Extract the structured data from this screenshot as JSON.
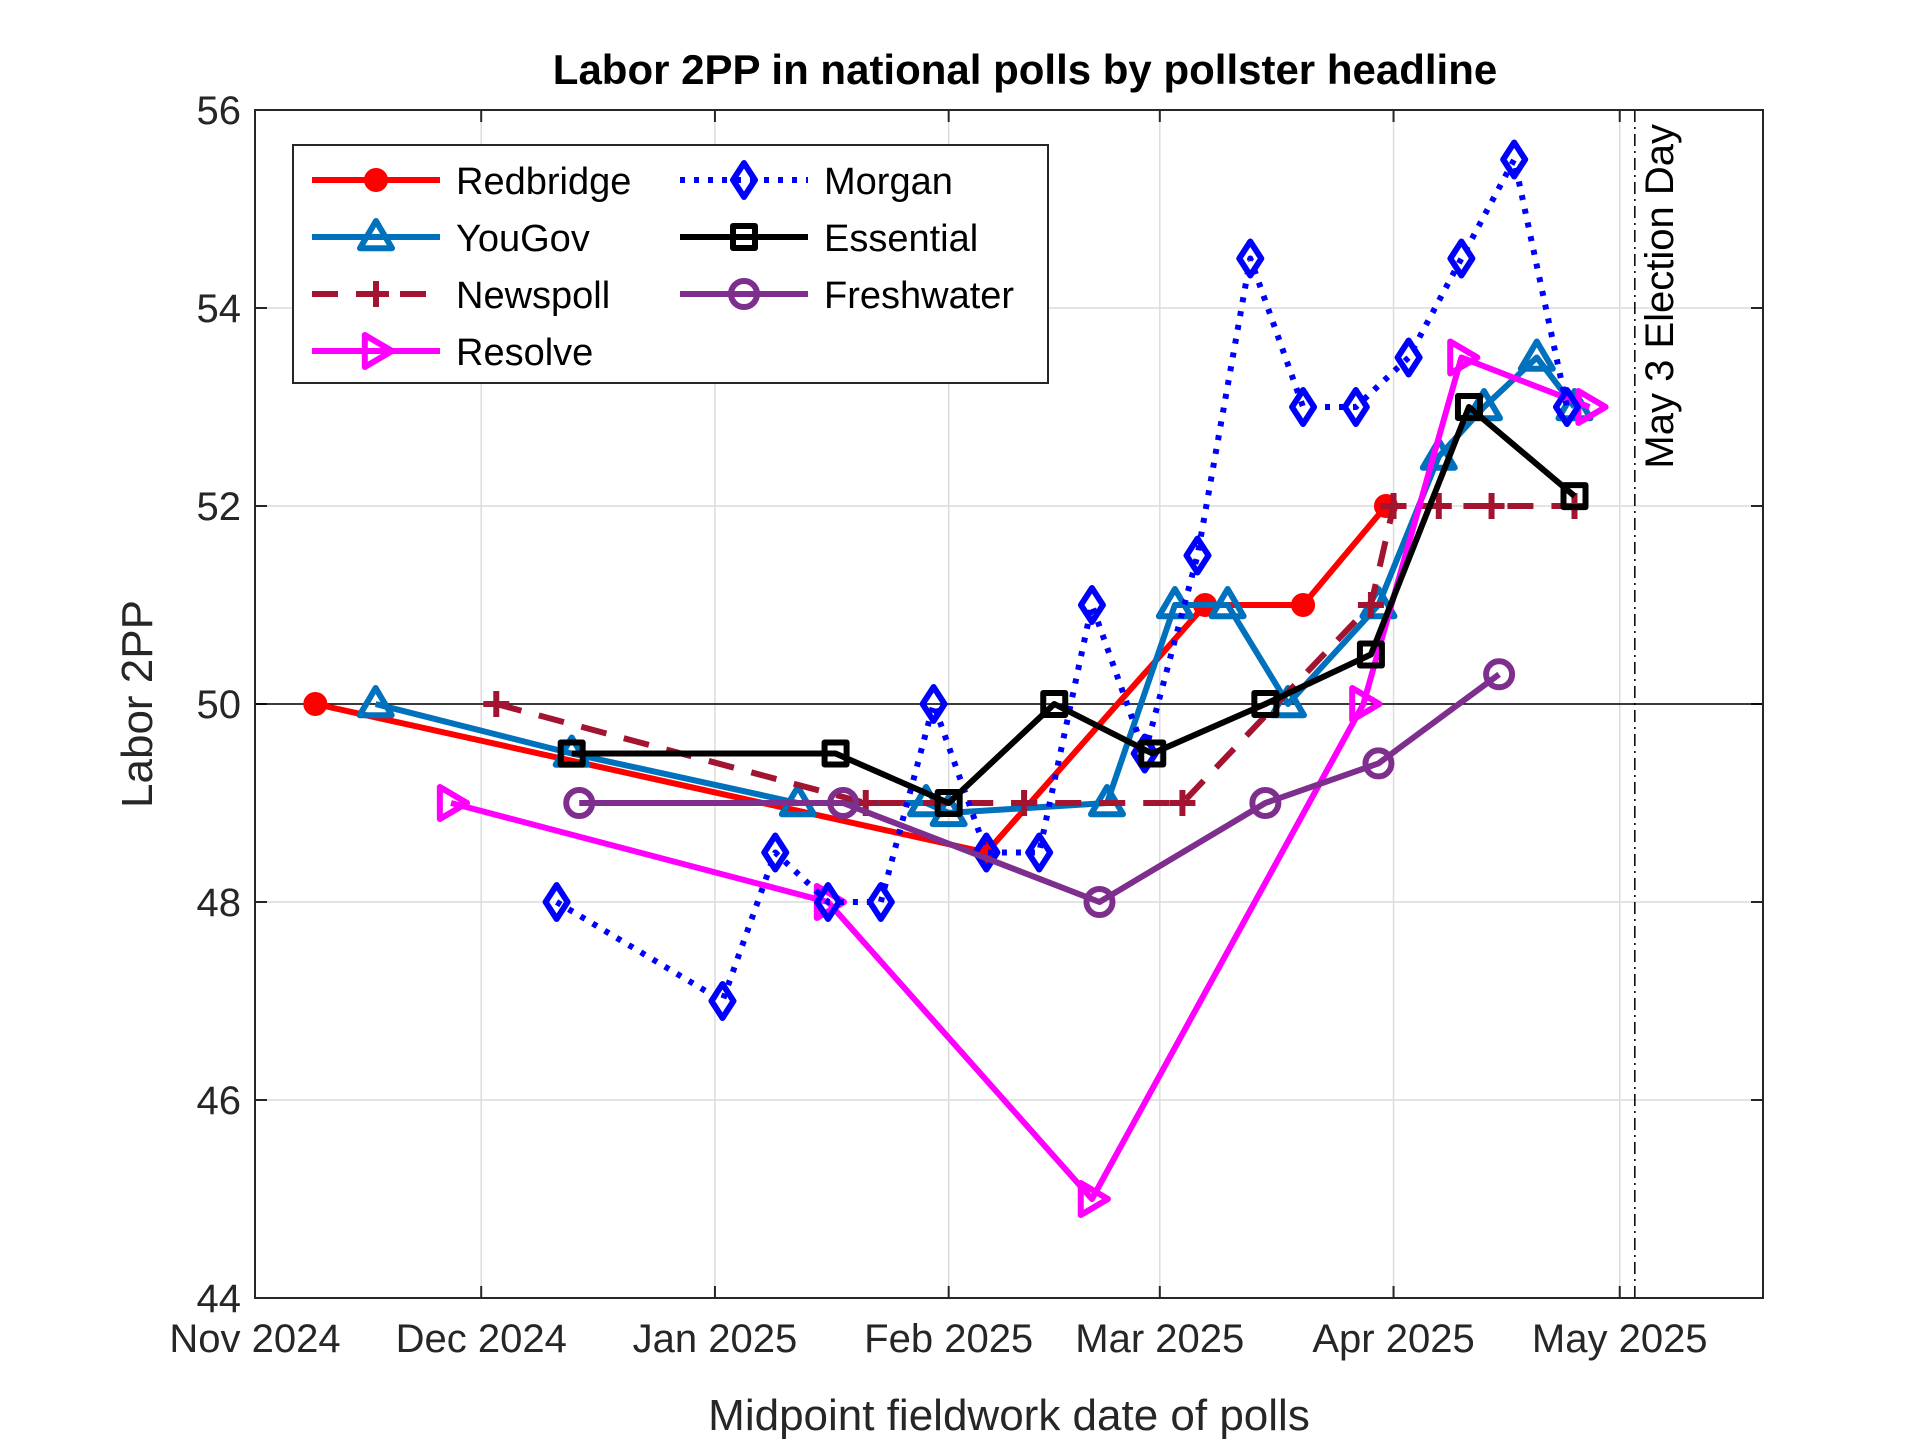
{
  "chart_data": {
    "type": "line",
    "title": "Labor 2PP in national polls by pollster headline",
    "xlabel": "Midpoint fieldwork date of polls",
    "ylabel": "Labor 2PP",
    "ylim": [
      44,
      56
    ],
    "yticks": [
      "44",
      "46",
      "48",
      "50",
      "52",
      "54",
      "56"
    ],
    "xlim": [
      "2024-11-01",
      "2025-05-20"
    ],
    "xticks": [
      {
        "date": "2024-11-01",
        "label": "Nov 2024"
      },
      {
        "date": "2024-12-01",
        "label": "Dec 2024"
      },
      {
        "date": "2025-01-01",
        "label": "Jan 2025"
      },
      {
        "date": "2025-02-01",
        "label": "Feb 2025"
      },
      {
        "date": "2025-03-01",
        "label": "Mar 2025"
      },
      {
        "date": "2025-04-01",
        "label": "Apr 2025"
      },
      {
        "date": "2025-05-01",
        "label": "May 2025"
      }
    ],
    "grid": true,
    "legend_position": "top-left",
    "reference_line_y": 50,
    "election_day": {
      "date": "2025-05-03",
      "label": "May 3 Election Day"
    },
    "series": [
      {
        "name": "Redbridge",
        "color": "#ff0000",
        "marker": "circle",
        "line": "solid",
        "points": [
          [
            "2024-11-09",
            50
          ],
          [
            "2025-02-06",
            48.5
          ],
          [
            "2025-03-07",
            51
          ],
          [
            "2025-03-20",
            51
          ],
          [
            "2025-03-31",
            52
          ]
        ]
      },
      {
        "name": "YouGov",
        "color": "#0072bd",
        "marker": "triangle-up",
        "line": "solid",
        "points": [
          [
            "2024-11-17",
            50
          ],
          [
            "2024-12-13",
            49.5
          ],
          [
            "2025-01-12",
            49
          ],
          [
            "2025-01-29",
            49
          ],
          [
            "2025-02-01",
            48.9
          ],
          [
            "2025-02-22",
            49
          ],
          [
            "2025-03-03",
            51
          ],
          [
            "2025-03-10",
            51
          ],
          [
            "2025-03-18",
            50
          ],
          [
            "2025-03-30",
            51
          ],
          [
            "2025-04-07",
            52.5
          ],
          [
            "2025-04-13",
            53
          ],
          [
            "2025-04-20",
            53.5
          ],
          [
            "2025-04-25",
            53
          ]
        ]
      },
      {
        "name": "Newspoll",
        "color": "#a2142f",
        "marker": "plus",
        "line": "dashed",
        "points": [
          [
            "2024-12-03",
            50
          ],
          [
            "2025-01-21",
            49
          ],
          [
            "2025-02-11",
            49
          ],
          [
            "2025-03-04",
            49
          ],
          [
            "2025-03-29",
            51
          ],
          [
            "2025-04-01",
            52
          ],
          [
            "2025-04-07",
            52
          ],
          [
            "2025-04-14",
            52
          ],
          [
            "2025-04-25",
            52
          ]
        ]
      },
      {
        "name": "Resolve",
        "color": "#ff00ff",
        "marker": "triangle-right",
        "line": "solid",
        "points": [
          [
            "2024-11-27",
            49
          ],
          [
            "2025-01-16",
            48
          ],
          [
            "2025-02-20",
            45
          ],
          [
            "2025-03-28",
            50
          ],
          [
            "2025-04-10",
            53.5
          ],
          [
            "2025-04-27",
            53
          ]
        ]
      },
      {
        "name": "Morgan",
        "color": "#0000ff",
        "marker": "diamond",
        "line": "dotted",
        "points": [
          [
            "2024-12-11",
            48
          ],
          [
            "2025-01-02",
            47
          ],
          [
            "2025-01-09",
            48.5
          ],
          [
            "2025-01-16",
            48
          ],
          [
            "2025-01-23",
            48
          ],
          [
            "2025-01-30",
            50
          ],
          [
            "2025-02-06",
            48.5
          ],
          [
            "2025-02-13",
            48.5
          ],
          [
            "2025-02-20",
            51
          ],
          [
            "2025-02-27",
            49.5
          ],
          [
            "2025-03-06",
            51.5
          ],
          [
            "2025-03-13",
            54.5
          ],
          [
            "2025-03-20",
            53
          ],
          [
            "2025-03-27",
            53
          ],
          [
            "2025-04-03",
            53.5
          ],
          [
            "2025-04-10",
            54.5
          ],
          [
            "2025-04-17",
            55.5
          ],
          [
            "2025-04-24",
            53
          ]
        ]
      },
      {
        "name": "Essential",
        "color": "#000000",
        "marker": "square",
        "line": "solid",
        "points": [
          [
            "2024-12-13",
            49.5
          ],
          [
            "2025-01-17",
            49.5
          ],
          [
            "2025-02-01",
            49
          ],
          [
            "2025-02-15",
            50
          ],
          [
            "2025-02-28",
            49.5
          ],
          [
            "2025-03-15",
            50
          ],
          [
            "2025-03-29",
            50.5
          ],
          [
            "2025-04-11",
            53
          ],
          [
            "2025-04-25",
            52.1
          ]
        ]
      },
      {
        "name": "Freshwater",
        "color": "#7e2f8e",
        "marker": "circle-open",
        "line": "solid",
        "points": [
          [
            "2024-12-14",
            49
          ],
          [
            "2025-01-18",
            49
          ],
          [
            "2025-02-21",
            48
          ],
          [
            "2025-03-15",
            49
          ],
          [
            "2025-03-30",
            49.4
          ],
          [
            "2025-04-15",
            50.3
          ]
        ]
      }
    ]
  }
}
